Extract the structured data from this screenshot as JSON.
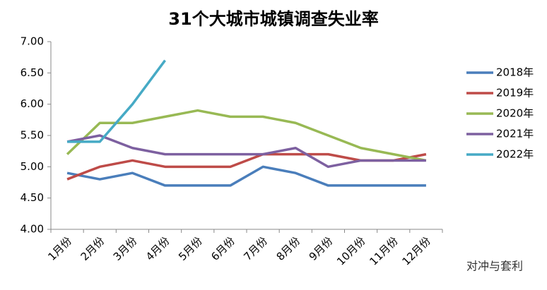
{
  "chart_data": {
    "type": "line",
    "title": "31个大城市城镇调查失业率",
    "categories": [
      "1月份",
      "2月份",
      "3月份",
      "4月份",
      "5月份",
      "6月份",
      "7月份",
      "8月份",
      "9月份",
      "10月份",
      "11月份",
      "12月份"
    ],
    "series": [
      {
        "name": "2018年",
        "color": "#4a7ebb",
        "values": [
          4.9,
          4.8,
          4.9,
          4.7,
          4.7,
          4.7,
          5.0,
          4.9,
          4.7,
          4.7,
          4.7,
          4.7
        ]
      },
      {
        "name": "2019年",
        "color": "#be4b48",
        "values": [
          4.8,
          5.0,
          5.1,
          5.0,
          5.0,
          5.0,
          5.2,
          5.2,
          5.2,
          5.1,
          5.1,
          5.2
        ]
      },
      {
        "name": "2020年",
        "color": "#98b954",
        "values": [
          5.2,
          5.7,
          5.7,
          5.8,
          5.9,
          5.8,
          5.8,
          5.7,
          5.5,
          5.3,
          5.2,
          5.1
        ]
      },
      {
        "name": "2021年",
        "color": "#7d60a0",
        "values": [
          5.4,
          5.5,
          5.3,
          5.2,
          5.2,
          5.2,
          5.2,
          5.3,
          5.0,
          5.1,
          5.1,
          5.1
        ]
      },
      {
        "name": "2022年",
        "color": "#46aac5",
        "values": [
          5.4,
          5.4,
          6.0,
          6.7,
          null,
          null,
          null,
          null,
          null,
          null,
          null,
          null
        ]
      }
    ],
    "ylim": [
      4,
      7
    ],
    "yticks": [
      {
        "value": 4,
        "label": "4.00"
      },
      {
        "value": 4.5,
        "label": "4.50"
      },
      {
        "value": 5,
        "label": "5.00"
      },
      {
        "value": 5.5,
        "label": "5.50"
      },
      {
        "value": 6,
        "label": "6.00"
      },
      {
        "value": 6.5,
        "label": "6.50"
      },
      {
        "value": 7,
        "label": "7.00"
      }
    ],
    "legend": "right",
    "watermark": "对冲与套利"
  }
}
